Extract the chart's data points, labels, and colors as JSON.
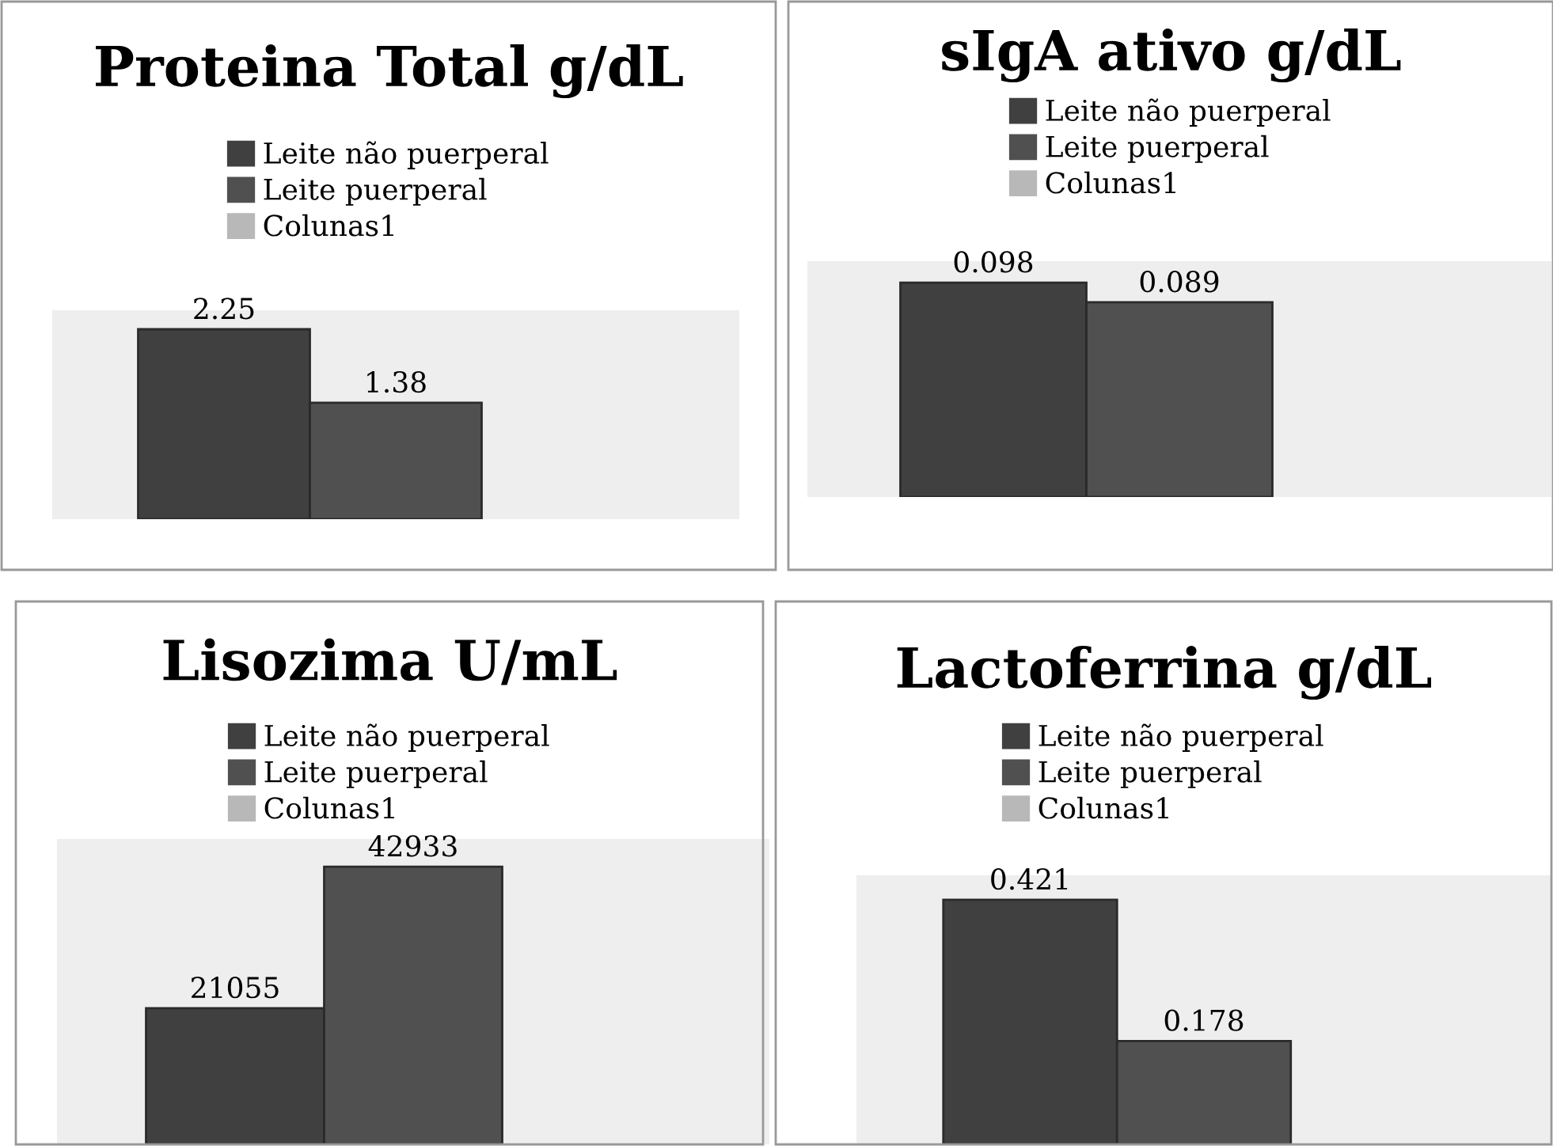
{
  "chart_data": [
    {
      "type": "bar",
      "title": "Proteina Total g/dL",
      "categories": [
        null
      ],
      "data_labels": true,
      "legend": "top",
      "tick_labels": false,
      "series": [
        {
          "name": "Leite não puerperal",
          "color": "#404040",
          "values": [
            2.25
          ]
        },
        {
          "name": "Leite puerperal",
          "color": "#505050",
          "values": [
            1.38
          ]
        },
        {
          "name": "Colunas1",
          "color": "#b8b8b8",
          "values": [
            null
          ]
        }
      ]
    },
    {
      "type": "bar",
      "title": "sIgA ativo g/dL",
      "categories": [
        null
      ],
      "data_labels": true,
      "legend": "top",
      "tick_labels": false,
      "series": [
        {
          "name": "Leite não puerperal",
          "color": "#404040",
          "values": [
            0.098
          ]
        },
        {
          "name": "Leite puerperal",
          "color": "#505050",
          "values": [
            0.089
          ]
        },
        {
          "name": "Colunas1",
          "color": "#b8b8b8",
          "values": [
            null
          ]
        }
      ]
    },
    {
      "type": "bar",
      "title": "Lisozima U/mL",
      "categories": [
        null
      ],
      "data_labels": true,
      "legend": "top",
      "tick_labels": false,
      "series": [
        {
          "name": "Leite não puerperal",
          "color": "#404040",
          "values": [
            21055
          ]
        },
        {
          "name": "Leite puerperal",
          "color": "#505050",
          "values": [
            42933
          ]
        },
        {
          "name": "Colunas1",
          "color": "#b8b8b8",
          "values": [
            null
          ]
        }
      ]
    },
    {
      "type": "bar",
      "title": "Lactoferrina g/dL",
      "categories": [
        null
      ],
      "data_labels": true,
      "legend": "top",
      "tick_labels": false,
      "series": [
        {
          "name": "Leite não puerperal",
          "color": "#404040",
          "values": [
            0.421
          ]
        },
        {
          "name": "Leite puerperal",
          "color": "#505050",
          "values": [
            0.178
          ]
        },
        {
          "name": "Colunas1",
          "color": "#b8b8b8",
          "values": [
            null
          ]
        }
      ]
    }
  ]
}
